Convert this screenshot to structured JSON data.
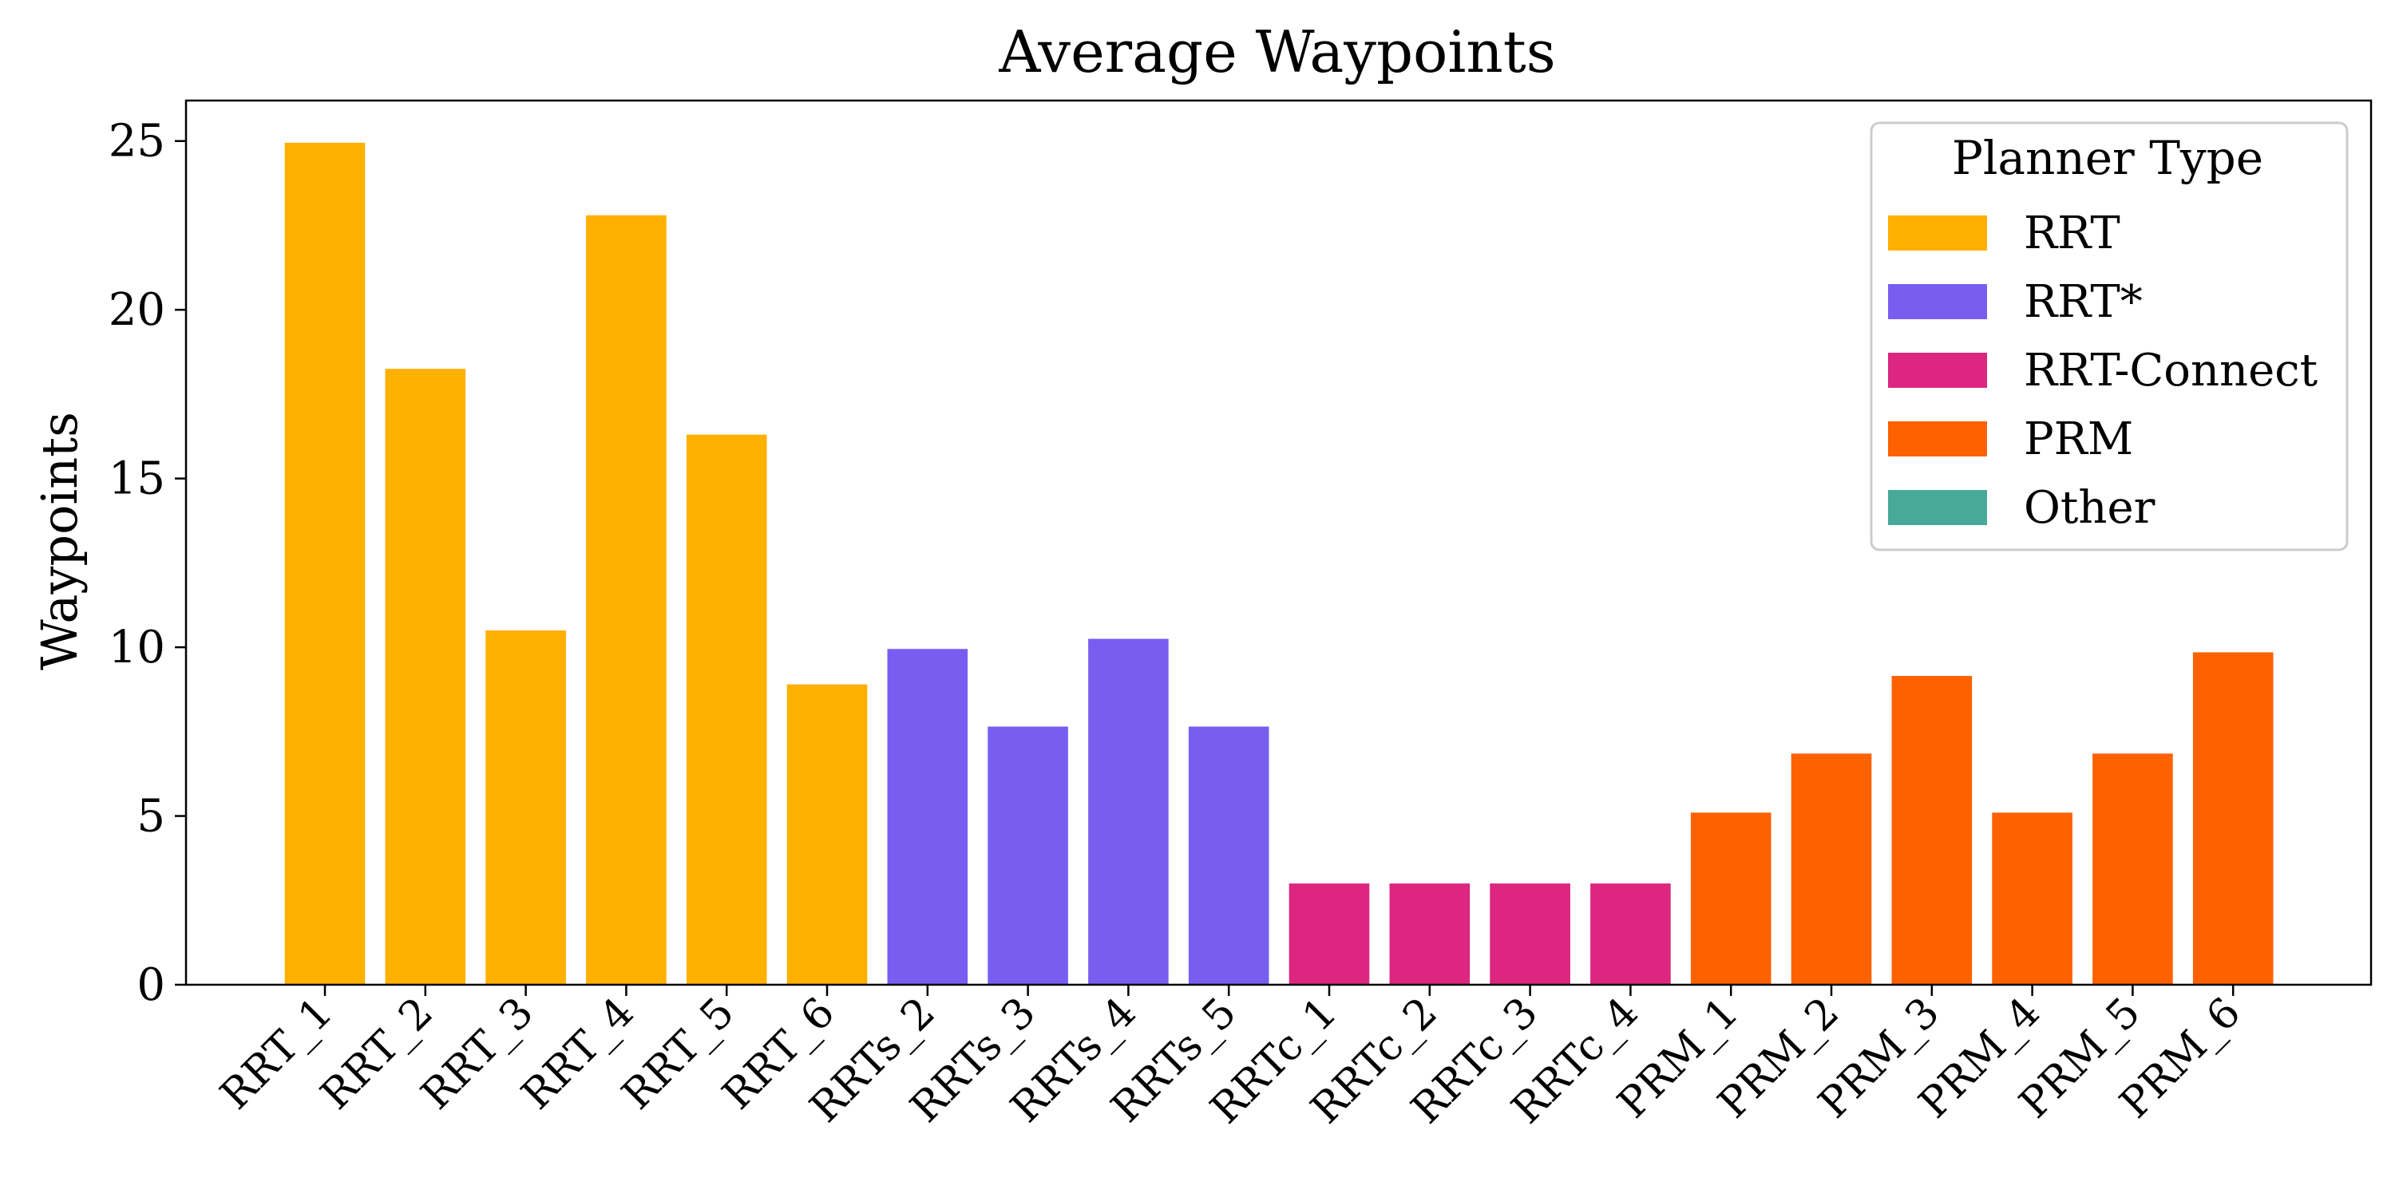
{
  "chart_data": {
    "type": "bar",
    "title": "Average Waypoints",
    "xlabel": "",
    "ylabel": "Waypoints",
    "ylim": [
      0,
      26.2
    ],
    "yticks": [
      0,
      5,
      10,
      15,
      20,
      25
    ],
    "grid": false,
    "legend": {
      "title": "Planner Type",
      "placement": "top-right",
      "entries": [
        {
          "label": "RRT",
          "color": "#FFB000"
        },
        {
          "label": "RRT*",
          "color": "#785EF0"
        },
        {
          "label": "RRT-Connect",
          "color": "#DC267F"
        },
        {
          "label": "PRM",
          "color": "#FE6100"
        },
        {
          "label": "Other",
          "color": "#48A999"
        }
      ]
    },
    "categories": [
      "RRT_1",
      "RRT_2",
      "RRT_3",
      "RRT_4",
      "RRT_5",
      "RRT_6",
      "RRTs_2",
      "RRTs_3",
      "RRTs_4",
      "RRTs_5",
      "RRTc_1",
      "RRTc_2",
      "RRTc_3",
      "RRTc_4",
      "PRM_1",
      "PRM_2",
      "PRM_3",
      "PRM_4",
      "PRM_5",
      "PRM_6"
    ],
    "values": [
      24.95,
      18.25,
      10.5,
      22.8,
      16.3,
      8.9,
      9.95,
      7.65,
      10.25,
      7.65,
      3.0,
      3.0,
      3.0,
      3.0,
      5.1,
      6.85,
      9.15,
      5.1,
      6.85,
      9.85
    ],
    "groups": [
      "RRT",
      "RRT",
      "RRT",
      "RRT",
      "RRT",
      "RRT",
      "RRT*",
      "RRT*",
      "RRT*",
      "RRT*",
      "RRT-Connect",
      "RRT-Connect",
      "RRT-Connect",
      "RRT-Connect",
      "PRM",
      "PRM",
      "PRM",
      "PRM",
      "PRM",
      "PRM"
    ]
  }
}
